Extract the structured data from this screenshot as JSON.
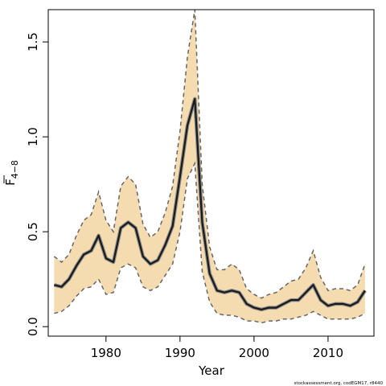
{
  "chart_data": {
    "type": "line",
    "title": "",
    "xlabel": "Year",
    "ylabel_main": "F",
    "ylabel_sub": "4−8",
    "xlim": [
      1972.2,
      2016.2
    ],
    "ylim": [
      -0.05,
      1.67
    ],
    "xticks": [
      1980,
      1990,
      2000,
      2010
    ],
    "xtick_labels": [
      "1980",
      "1990",
      "2000",
      "2010"
    ],
    "yticks": [
      0.0,
      0.5,
      1.0,
      1.5
    ],
    "ytick_labels": [
      "0.0",
      "0.5",
      "1.0",
      "1.5"
    ],
    "x": [
      1973,
      1974,
      1975,
      1976,
      1977,
      1978,
      1979,
      1980,
      1981,
      1982,
      1983,
      1984,
      1985,
      1986,
      1987,
      1988,
      1989,
      1990,
      1991,
      1992,
      1993,
      1994,
      1995,
      1996,
      1997,
      1998,
      1999,
      2000,
      2001,
      2002,
      2003,
      2004,
      2005,
      2006,
      2007,
      2008,
      2009,
      2010,
      2011,
      2012,
      2013,
      2014,
      2015
    ],
    "series": [
      {
        "role": "estimate",
        "values": [
          0.22,
          0.21,
          0.25,
          0.32,
          0.38,
          0.4,
          0.48,
          0.36,
          0.34,
          0.52,
          0.55,
          0.52,
          0.37,
          0.33,
          0.35,
          0.43,
          0.53,
          0.79,
          1.06,
          1.2,
          0.55,
          0.28,
          0.19,
          0.18,
          0.19,
          0.18,
          0.12,
          0.1,
          0.09,
          0.1,
          0.1,
          0.12,
          0.14,
          0.14,
          0.18,
          0.22,
          0.14,
          0.11,
          0.12,
          0.12,
          0.11,
          0.13,
          0.19
        ]
      },
      {
        "role": "upper_ci",
        "values": [
          0.37,
          0.34,
          0.38,
          0.48,
          0.56,
          0.59,
          0.71,
          0.56,
          0.5,
          0.74,
          0.79,
          0.75,
          0.54,
          0.47,
          0.5,
          0.6,
          0.74,
          1.03,
          1.42,
          1.67,
          0.75,
          0.42,
          0.3,
          0.3,
          0.33,
          0.3,
          0.2,
          0.17,
          0.15,
          0.17,
          0.18,
          0.21,
          0.24,
          0.25,
          0.31,
          0.4,
          0.26,
          0.19,
          0.2,
          0.2,
          0.19,
          0.22,
          0.33
        ]
      },
      {
        "role": "lower_ci",
        "values": [
          0.07,
          0.08,
          0.11,
          0.16,
          0.2,
          0.21,
          0.25,
          0.17,
          0.18,
          0.31,
          0.33,
          0.31,
          0.21,
          0.19,
          0.21,
          0.27,
          0.33,
          0.5,
          0.78,
          0.86,
          0.29,
          0.13,
          0.07,
          0.06,
          0.06,
          0.05,
          0.03,
          0.03,
          0.02,
          0.03,
          0.03,
          0.04,
          0.04,
          0.05,
          0.06,
          0.08,
          0.06,
          0.04,
          0.04,
          0.04,
          0.04,
          0.05,
          0.07
        ]
      }
    ],
    "colors": {
      "band_fill": "#f5dcb0",
      "estimate_line": "#1a1a1a",
      "ci_line": "#666666",
      "axis": "#000000"
    }
  },
  "footer": {
    "credit": "stockassessment.org, codEGM17, r8440"
  }
}
